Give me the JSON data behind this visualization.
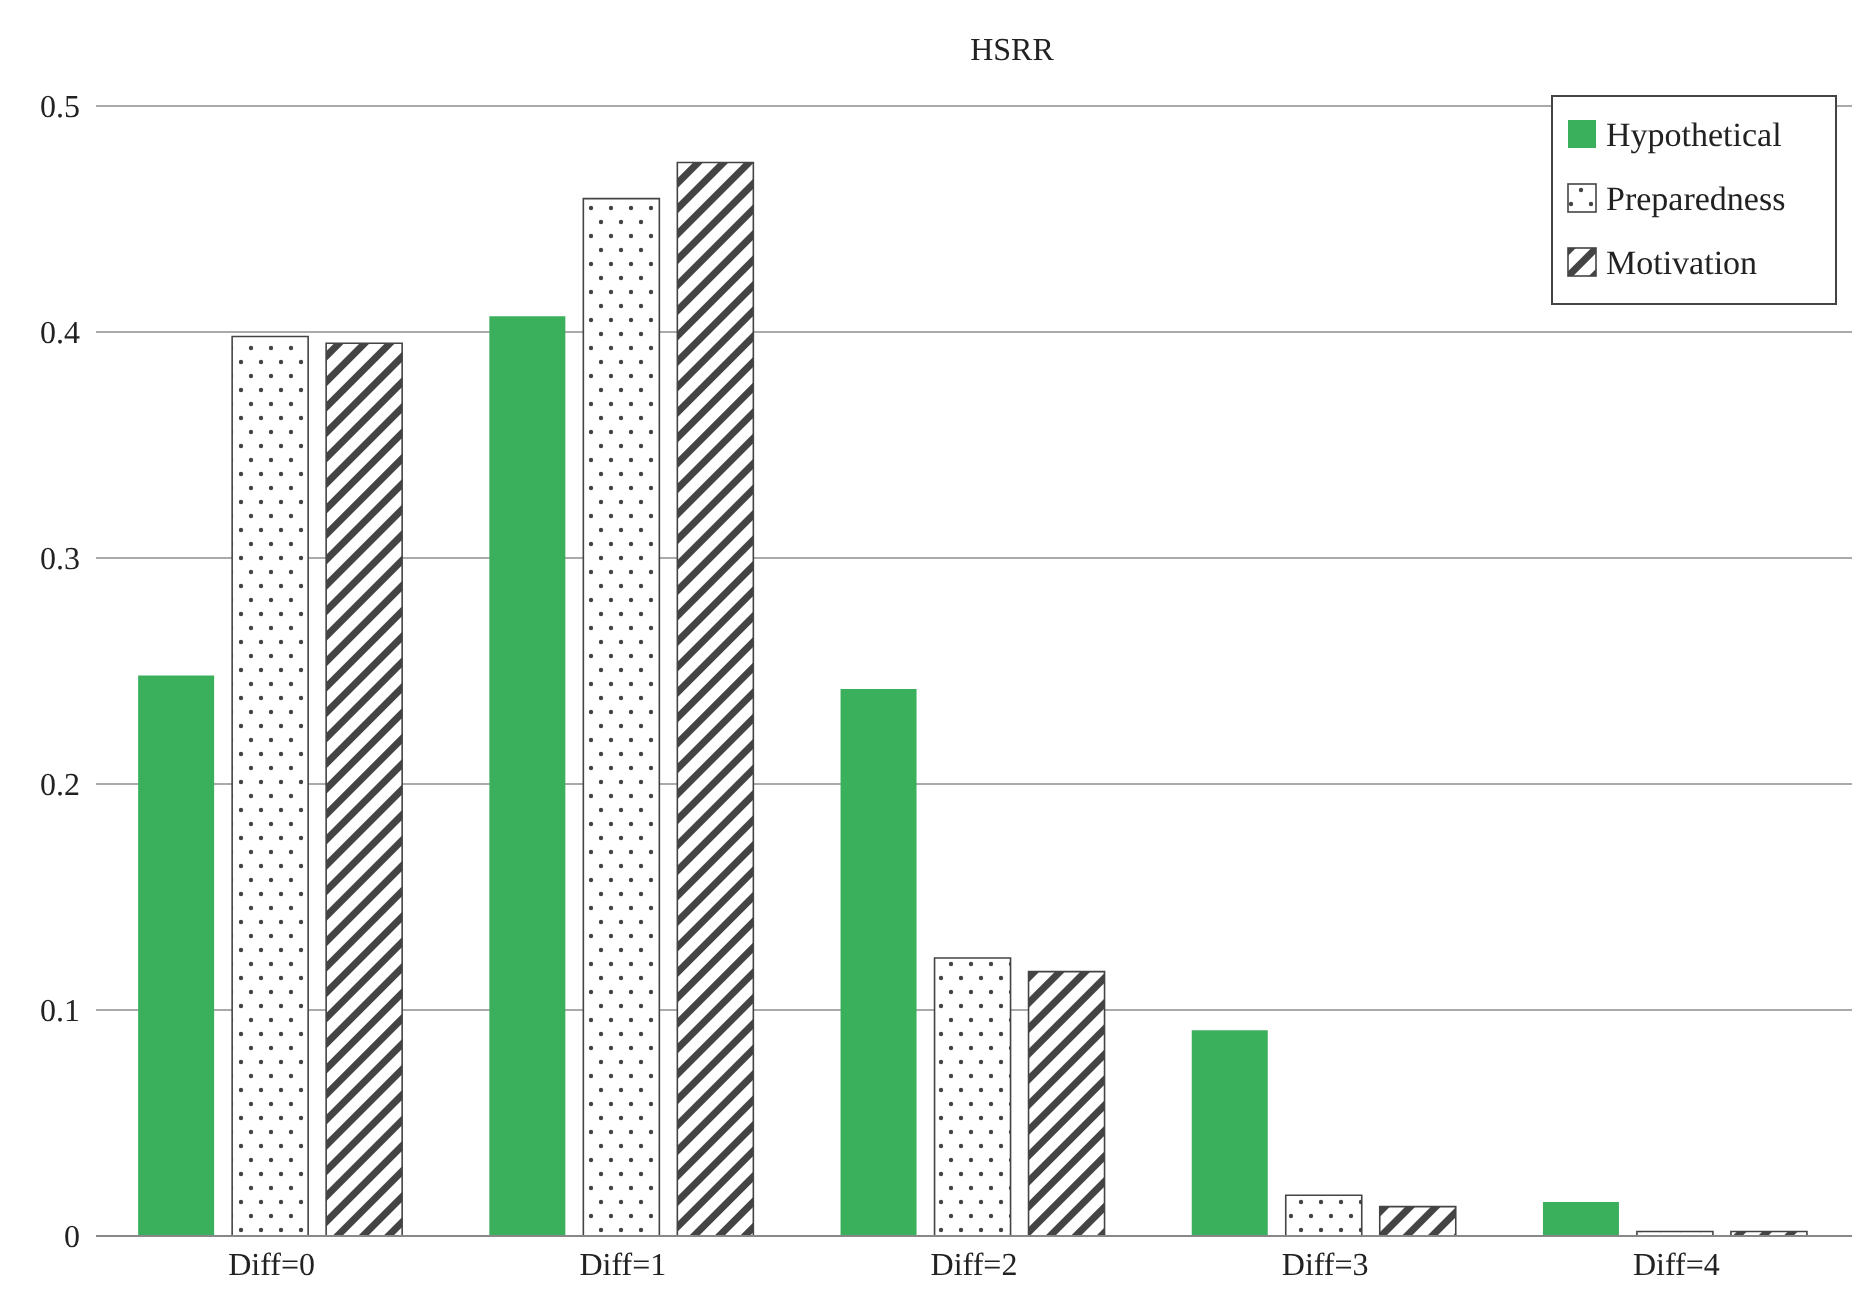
{
  "chart_data": {
    "type": "bar",
    "title": "HSRR",
    "categories": [
      "Diff=0",
      "Diff=1",
      "Diff=2",
      "Diff=3",
      "Diff=4"
    ],
    "series": [
      {
        "name": "Hypothetical",
        "color": "#3aaf5c",
        "values": [
          0.248,
          0.407,
          0.242,
          0.091,
          0.015
        ]
      },
      {
        "name": "Preparedness",
        "color": "#444444",
        "values": [
          0.398,
          0.459,
          0.123,
          0.018,
          0.002
        ]
      },
      {
        "name": "Motivation",
        "color": "#444444",
        "values": [
          0.395,
          0.475,
          0.117,
          0.013,
          0.002
        ]
      }
    ],
    "ylim": [
      0,
      0.5
    ],
    "yticks": [
      0,
      0.1,
      0.2,
      0.3,
      0.4,
      0.5
    ],
    "grid": "y",
    "legend": "top right"
  }
}
